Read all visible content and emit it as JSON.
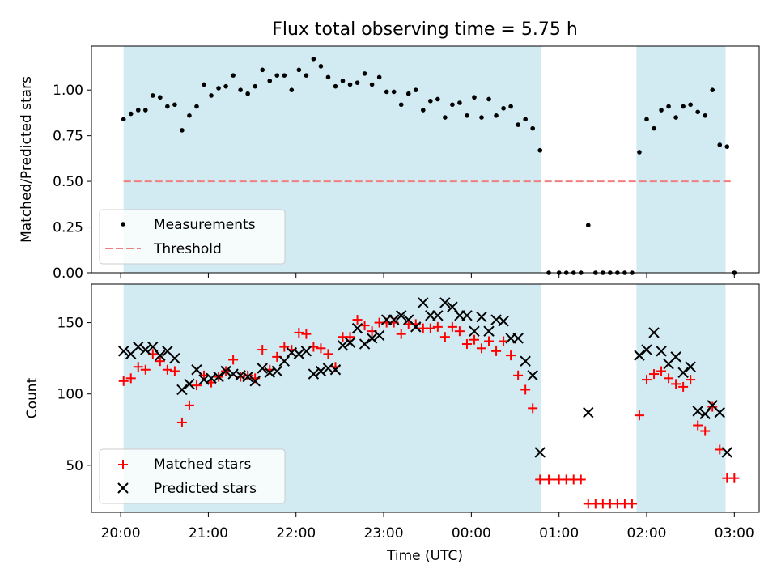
{
  "chart_data": [
    {
      "type": "scatter",
      "title": "Flux total observing time = 5.75 h",
      "xlabel": "",
      "ylabel": "Matched/Predicted stars",
      "ylim": [
        0,
        1.24
      ],
      "yticks": [
        0.0,
        0.25,
        0.5,
        0.75,
        1.0
      ],
      "ytick_labels": [
        "0.00",
        "0.25",
        "0.50",
        "0.75",
        "1.00"
      ],
      "xlim": [
        "19:40",
        "03:17"
      ],
      "shaded_intervals": [
        [
          "20:02",
          "00:48"
        ],
        [
          "01:53",
          "02:54"
        ]
      ],
      "shade_color": "#add8e6",
      "threshold": {
        "name": "Threshold",
        "y": 0.5,
        "x_range": [
          "20:02",
          "02:58"
        ],
        "color": "#f08080"
      },
      "legend": [
        "Measurements",
        "Threshold"
      ],
      "legend_position": "lower-left",
      "series": [
        {
          "name": "Measurements",
          "color": "#000000",
          "marker": "dot",
          "points": [
            [
              "20:02",
              0.84
            ],
            [
              "20:07",
              0.87
            ],
            [
              "20:12",
              0.89
            ],
            [
              "20:17",
              0.89
            ],
            [
              "20:22",
              0.97
            ],
            [
              "20:27",
              0.96
            ],
            [
              "20:32",
              0.91
            ],
            [
              "20:37",
              0.92
            ],
            [
              "20:42",
              0.78
            ],
            [
              "20:47",
              0.86
            ],
            [
              "20:52",
              0.91
            ],
            [
              "20:57",
              1.03
            ],
            [
              "21:02",
              0.97
            ],
            [
              "21:07",
              1.01
            ],
            [
              "21:12",
              1.02
            ],
            [
              "21:17",
              1.08
            ],
            [
              "21:22",
              1.0
            ],
            [
              "21:27",
              0.98
            ],
            [
              "21:32",
              1.02
            ],
            [
              "21:37",
              1.11
            ],
            [
              "21:42",
              1.05
            ],
            [
              "21:47",
              1.08
            ],
            [
              "21:52",
              1.08
            ],
            [
              "21:57",
              1.0
            ],
            [
              "22:02",
              1.11
            ],
            [
              "22:07",
              1.08
            ],
            [
              "22:12",
              1.17
            ],
            [
              "22:17",
              1.13
            ],
            [
              "22:22",
              1.07
            ],
            [
              "22:27",
              1.02
            ],
            [
              "22:32",
              1.05
            ],
            [
              "22:37",
              1.03
            ],
            [
              "22:42",
              1.04
            ],
            [
              "22:47",
              1.09
            ],
            [
              "22:52",
              1.03
            ],
            [
              "22:57",
              1.07
            ],
            [
              "23:02",
              0.99
            ],
            [
              "23:07",
              0.99
            ],
            [
              "23:12",
              0.92
            ],
            [
              "23:17",
              0.98
            ],
            [
              "23:22",
              1.0
            ],
            [
              "23:27",
              0.89
            ],
            [
              "23:32",
              0.94
            ],
            [
              "23:37",
              0.95
            ],
            [
              "23:42",
              0.85
            ],
            [
              "23:47",
              0.92
            ],
            [
              "23:52",
              0.93
            ],
            [
              "23:57",
              0.86
            ],
            [
              "00:02",
              0.96
            ],
            [
              "00:07",
              0.85
            ],
            [
              "00:12",
              0.95
            ],
            [
              "00:17",
              0.86
            ],
            [
              "00:22",
              0.9
            ],
            [
              "00:27",
              0.91
            ],
            [
              "00:32",
              0.81
            ],
            [
              "00:37",
              0.84
            ],
            [
              "00:42",
              0.79
            ],
            [
              "00:47",
              0.67
            ],
            [
              "00:53",
              0.0
            ],
            [
              "01:00",
              0.0
            ],
            [
              "01:05",
              0.0
            ],
            [
              "01:10",
              0.0
            ],
            [
              "01:15",
              0.0
            ],
            [
              "01:20",
              0.26
            ],
            [
              "01:25",
              0.0
            ],
            [
              "01:30",
              0.0
            ],
            [
              "01:35",
              0.0
            ],
            [
              "01:40",
              0.0
            ],
            [
              "01:45",
              0.0
            ],
            [
              "01:50",
              0.0
            ],
            [
              "01:55",
              0.66
            ],
            [
              "02:00",
              0.84
            ],
            [
              "02:05",
              0.79
            ],
            [
              "02:10",
              0.89
            ],
            [
              "02:15",
              0.91
            ],
            [
              "02:20",
              0.85
            ],
            [
              "02:25",
              0.91
            ],
            [
              "02:30",
              0.92
            ],
            [
              "02:35",
              0.88
            ],
            [
              "02:40",
              0.86
            ],
            [
              "02:45",
              1.0
            ],
            [
              "02:50",
              0.7
            ],
            [
              "02:55",
              0.69
            ],
            [
              "03:00",
              0.0
            ]
          ]
        }
      ]
    },
    {
      "type": "scatter",
      "title": "",
      "xlabel": "Time (UTC)",
      "ylabel": "Count",
      "ylim": [
        17,
        177
      ],
      "yticks": [
        50,
        100,
        150
      ],
      "ytick_labels": [
        "50",
        "100",
        "150"
      ],
      "xlim": [
        "19:40",
        "03:17"
      ],
      "xticks": [
        "20:00",
        "21:00",
        "22:00",
        "23:00",
        "00:00",
        "01:00",
        "02:00",
        "03:00"
      ],
      "xtick_labels": [
        "20:00",
        "21:00",
        "22:00",
        "23:00",
        "00:00",
        "01:00",
        "02:00",
        "03:00"
      ],
      "shaded_intervals": [
        [
          "20:02",
          "00:48"
        ],
        [
          "01:53",
          "02:54"
        ]
      ],
      "shade_color": "#add8e6",
      "legend": [
        "Matched stars",
        "Predicted stars"
      ],
      "legend_position": "lower-left",
      "series": [
        {
          "name": "Matched stars",
          "color": "#ff0000",
          "marker": "plus",
          "points": [
            [
              "20:02",
              109
            ],
            [
              "20:07",
              111
            ],
            [
              "20:12",
              119
            ],
            [
              "20:17",
              117
            ],
            [
              "20:22",
              128
            ],
            [
              "20:27",
              123
            ],
            [
              "20:32",
              117
            ],
            [
              "20:37",
              116
            ],
            [
              "20:42",
              80
            ],
            [
              "20:47",
              92
            ],
            [
              "20:52",
              106
            ],
            [
              "20:57",
              113
            ],
            [
              "21:02",
              108
            ],
            [
              "21:07",
              112
            ],
            [
              "21:12",
              116
            ],
            [
              "21:17",
              124
            ],
            [
              "21:22",
              112
            ],
            [
              "21:27",
              113
            ],
            [
              "21:32",
              111
            ],
            [
              "21:37",
              131
            ],
            [
              "21:42",
              117
            ],
            [
              "21:47",
              126
            ],
            [
              "21:52",
              133
            ],
            [
              "21:57",
              131
            ],
            [
              "22:02",
              143
            ],
            [
              "22:07",
              142
            ],
            [
              "22:12",
              133
            ],
            [
              "22:17",
              132
            ],
            [
              "22:22",
              128
            ],
            [
              "22:27",
              119
            ],
            [
              "22:32",
              140
            ],
            [
              "22:37",
              140
            ],
            [
              "22:42",
              152
            ],
            [
              "22:47",
              148
            ],
            [
              "22:52",
              144
            ],
            [
              "22:57",
              150
            ],
            [
              "23:02",
              150
            ],
            [
              "23:07",
              150
            ],
            [
              "23:12",
              142
            ],
            [
              "23:17",
              149
            ],
            [
              "23:22",
              149
            ],
            [
              "23:27",
              146
            ],
            [
              "23:32",
              146
            ],
            [
              "23:37",
              147
            ],
            [
              "23:42",
              140
            ],
            [
              "23:47",
              147
            ],
            [
              "23:52",
              144
            ],
            [
              "23:57",
              135
            ],
            [
              "00:02",
              138
            ],
            [
              "00:07",
              132
            ],
            [
              "00:12",
              137
            ],
            [
              "00:17",
              130
            ],
            [
              "00:22",
              137
            ],
            [
              "00:27",
              127
            ],
            [
              "00:32",
              113
            ],
            [
              "00:37",
              103
            ],
            [
              "00:42",
              90
            ],
            [
              "00:47",
              40
            ],
            [
              "00:53",
              40
            ],
            [
              "01:00",
              40
            ],
            [
              "01:05",
              40
            ],
            [
              "01:10",
              40
            ],
            [
              "01:15",
              40
            ],
            [
              "01:20",
              23
            ],
            [
              "01:25",
              23
            ],
            [
              "01:30",
              23
            ],
            [
              "01:35",
              23
            ],
            [
              "01:40",
              23
            ],
            [
              "01:45",
              23
            ],
            [
              "01:50",
              23
            ],
            [
              "01:55",
              85
            ],
            [
              "02:00",
              110
            ],
            [
              "02:05",
              114
            ],
            [
              "02:10",
              116
            ],
            [
              "02:15",
              111
            ],
            [
              "02:20",
              107
            ],
            [
              "02:25",
              105
            ],
            [
              "02:30",
              110
            ],
            [
              "02:35",
              78
            ],
            [
              "02:40",
              74
            ],
            [
              "02:45",
              91
            ],
            [
              "02:50",
              61
            ],
            [
              "02:55",
              41
            ],
            [
              "03:00",
              41
            ]
          ]
        },
        {
          "name": "Predicted stars",
          "color": "#000000",
          "marker": "x",
          "points": [
            [
              "20:02",
              130
            ],
            [
              "20:07",
              128
            ],
            [
              "20:12",
              133
            ],
            [
              "20:17",
              131
            ],
            [
              "20:22",
              133
            ],
            [
              "20:27",
              127
            ],
            [
              "20:32",
              130
            ],
            [
              "20:37",
              125
            ],
            [
              "20:42",
              103
            ],
            [
              "20:47",
              107
            ],
            [
              "20:52",
              117
            ],
            [
              "20:57",
              110
            ],
            [
              "21:02",
              111
            ],
            [
              "21:07",
              112
            ],
            [
              "21:12",
              116
            ],
            [
              "21:17",
              114
            ],
            [
              "21:22",
              113
            ],
            [
              "21:27",
              112
            ],
            [
              "21:32",
              109
            ],
            [
              "21:37",
              118
            ],
            [
              "21:42",
              115
            ],
            [
              "21:47",
              116
            ],
            [
              "21:52",
              123
            ],
            [
              "21:57",
              129
            ],
            [
              "22:02",
              128
            ],
            [
              "22:07",
              130
            ],
            [
              "22:12",
              114
            ],
            [
              "22:17",
              116
            ],
            [
              "22:22",
              118
            ],
            [
              "22:27",
              117
            ],
            [
              "22:32",
              134
            ],
            [
              "22:37",
              136
            ],
            [
              "22:42",
              146
            ],
            [
              "22:47",
              135
            ],
            [
              "22:52",
              139
            ],
            [
              "22:57",
              141
            ],
            [
              "23:02",
              152
            ],
            [
              "23:07",
              152
            ],
            [
              "23:12",
              155
            ],
            [
              "23:17",
              152
            ],
            [
              "23:22",
              147
            ],
            [
              "23:27",
              164
            ],
            [
              "23:32",
              155
            ],
            [
              "23:37",
              155
            ],
            [
              "23:42",
              164
            ],
            [
              "23:47",
              161
            ],
            [
              "23:52",
              155
            ],
            [
              "23:57",
              155
            ],
            [
              "00:02",
              144
            ],
            [
              "00:07",
              154
            ],
            [
              "00:12",
              144
            ],
            [
              "00:17",
              152
            ],
            [
              "00:22",
              151
            ],
            [
              "00:27",
              139
            ],
            [
              "00:32",
              139
            ],
            [
              "00:37",
              123
            ],
            [
              "00:42",
              113
            ],
            [
              "00:47",
              59
            ],
            [
              "01:20",
              87
            ],
            [
              "01:55",
              127
            ],
            [
              "02:00",
              131
            ],
            [
              "02:05",
              143
            ],
            [
              "02:10",
              130
            ],
            [
              "02:15",
              121
            ],
            [
              "02:20",
              126
            ],
            [
              "02:25",
              115
            ],
            [
              "02:30",
              119
            ],
            [
              "02:35",
              88
            ],
            [
              "02:40",
              86
            ],
            [
              "02:45",
              92
            ],
            [
              "02:50",
              87
            ],
            [
              "02:55",
              59
            ]
          ]
        }
      ]
    }
  ]
}
